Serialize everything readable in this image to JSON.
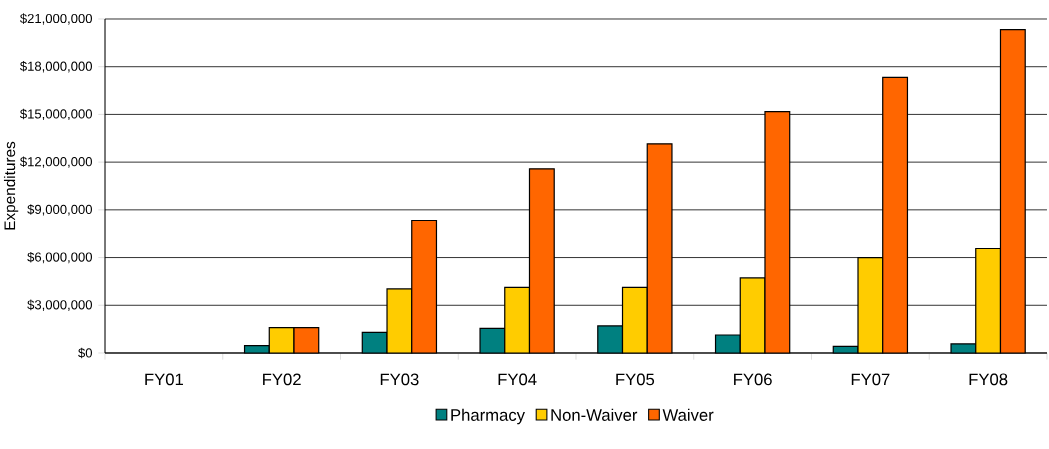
{
  "chart_data": {
    "type": "bar",
    "ylabel": "Expenditures",
    "categories": [
      "FY01",
      "FY02",
      "FY03",
      "FY04",
      "FY05",
      "FY06",
      "FY07",
      "FY08"
    ],
    "series": [
      {
        "name": "Pharmacy",
        "color": "#008080",
        "values": [
          null,
          460000,
          1300000,
          1550000,
          1700000,
          1130000,
          420000,
          570000
        ]
      },
      {
        "name": "Non-Waiver",
        "color": "#ffcc00",
        "values": [
          null,
          1590000,
          4030000,
          4130000,
          4130000,
          4720000,
          6000000,
          6570000
        ]
      },
      {
        "name": "Waiver",
        "color": "#ff6600",
        "values": [
          null,
          1590000,
          8330000,
          11580000,
          13150000,
          15170000,
          17330000,
          20330000
        ]
      }
    ],
    "ylim": [
      0,
      21000000
    ],
    "yticks": [
      {
        "value": 0,
        "label": "$0"
      },
      {
        "value": 3000000,
        "label": "$3,000,000"
      },
      {
        "value": 6000000,
        "label": "$6,000,000"
      },
      {
        "value": 9000000,
        "label": "$9,000,000"
      },
      {
        "value": 12000000,
        "label": "$12,000,000"
      },
      {
        "value": 15000000,
        "label": "$15,000,000"
      },
      {
        "value": 18000000,
        "label": "$18,000,000"
      },
      {
        "value": 21000000,
        "label": "$21,000,000"
      }
    ],
    "grid": "y",
    "legend": "bottom"
  }
}
